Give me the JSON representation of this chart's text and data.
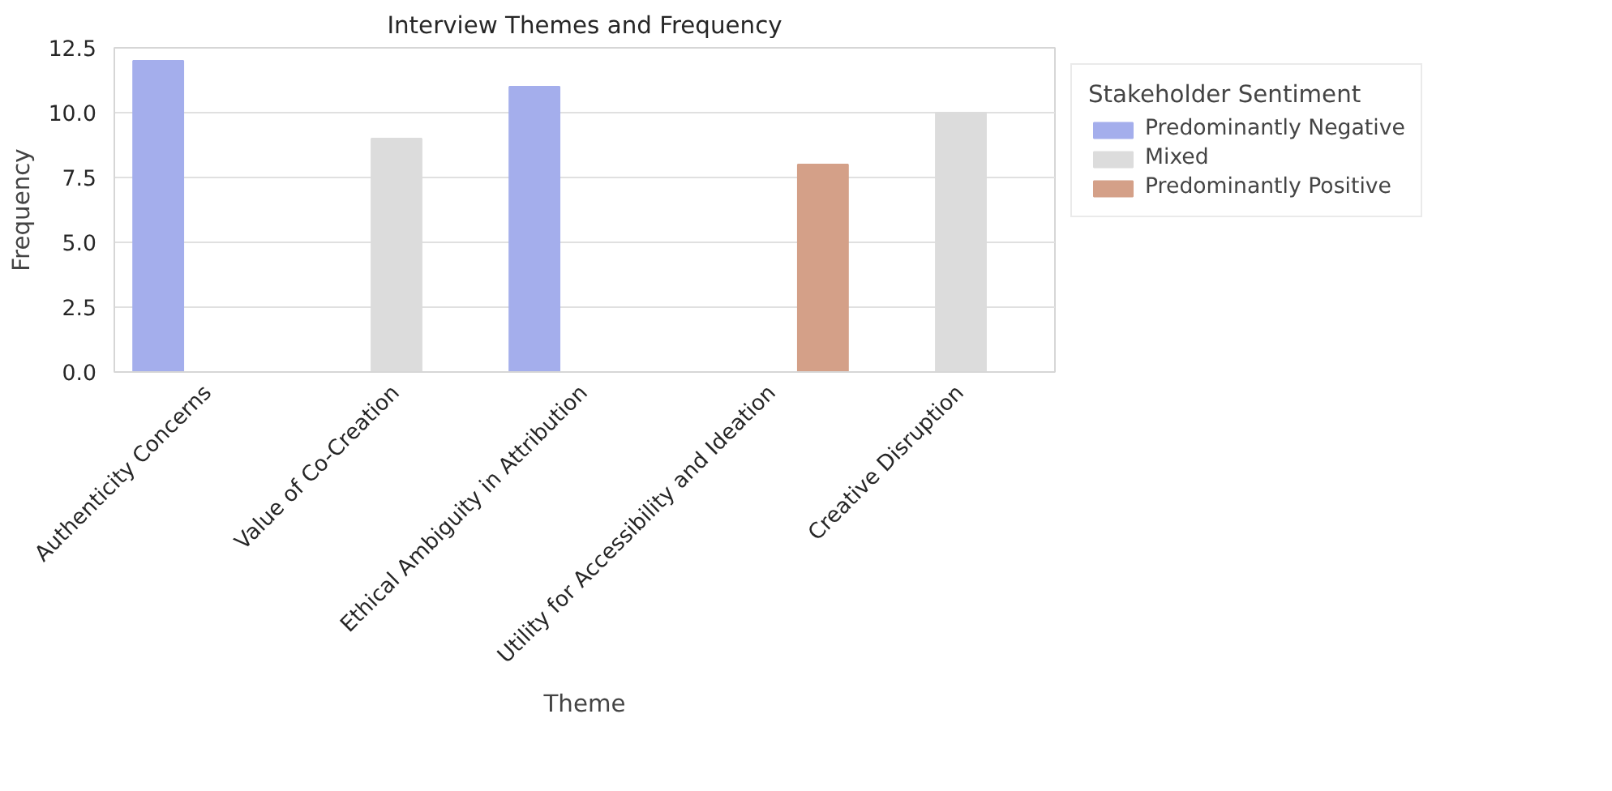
{
  "chart_data": {
    "type": "bar",
    "title": "Interview Themes and Frequency",
    "xlabel": "Theme",
    "ylabel": "Frequency",
    "legend_title": "Stakeholder Sentiment",
    "categories": [
      "Authenticity Concerns",
      "Value of Co-Creation",
      "Ethical Ambiguity in Attribution",
      "Utility for Accessibility and Ideation",
      "Creative Disruption"
    ],
    "series": [
      {
        "name": "Predominantly Negative",
        "color": "#a4aeec",
        "values": [
          12,
          null,
          11,
          null,
          null
        ]
      },
      {
        "name": "Mixed",
        "color": "#dcdcdc",
        "values": [
          null,
          9,
          null,
          null,
          10
        ]
      },
      {
        "name": "Predominantly Positive",
        "color": "#d4a088",
        "values": [
          null,
          null,
          null,
          8,
          null
        ]
      }
    ],
    "ylim": [
      0,
      12.5
    ],
    "yticks": [
      {
        "value": 0,
        "label": "0.0"
      },
      {
        "value": 2.5,
        "label": "2.5"
      },
      {
        "value": 5,
        "label": "5.0"
      },
      {
        "value": 7.5,
        "label": "7.5"
      },
      {
        "value": 10,
        "label": "10.0"
      },
      {
        "value": 12.5,
        "label": "12.5"
      }
    ],
    "grid": "y",
    "legend": "top right"
  }
}
